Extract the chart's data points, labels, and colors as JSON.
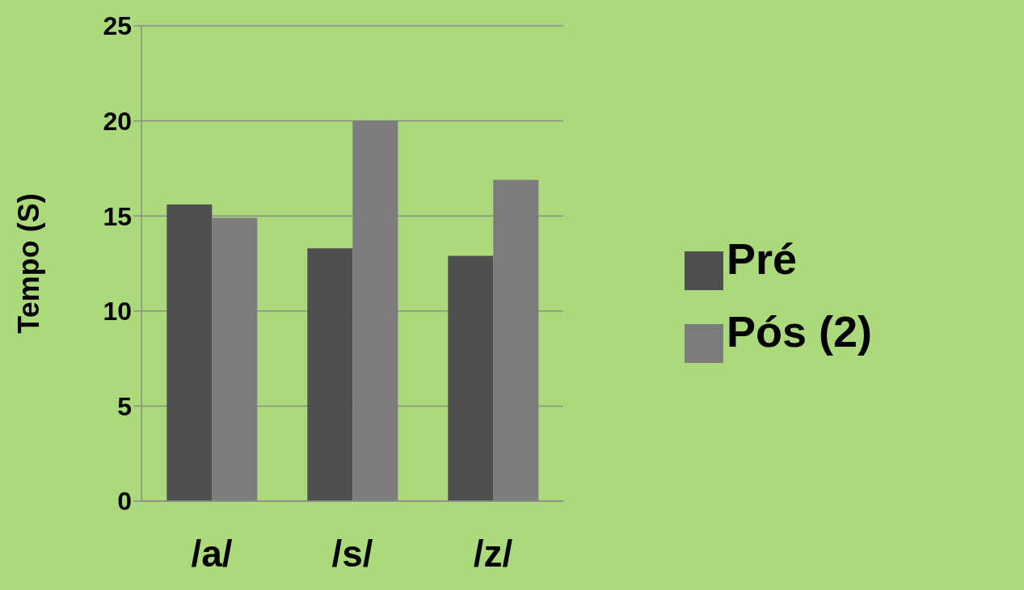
{
  "chart_data": {
    "type": "bar",
    "ylabel": "Tempo (S)",
    "categories": [
      "/a/",
      "/s/",
      "/z/"
    ],
    "series": [
      {
        "name": "Pré",
        "color": "#4f4f4f",
        "values": [
          15.6,
          13.3,
          12.9
        ]
      },
      {
        "name": "Pós (2)",
        "color": "#7c7c7c",
        "values": [
          14.9,
          20.0,
          16.9
        ]
      }
    ],
    "ylim": [
      0,
      25
    ],
    "yticks": [
      0,
      5,
      10,
      15,
      20,
      25
    ],
    "grid": "y",
    "legend": "right"
  }
}
